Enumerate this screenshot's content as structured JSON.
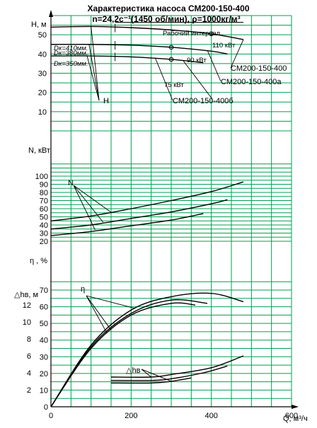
{
  "chart_data": {
    "type": "line",
    "title": "Характеристика насоса СМ200-150-400",
    "subtitle": "n=24,2с⁻¹(1450 об/мин), ρ=1000кг/м³",
    "colors": {
      "grid": "#00a050",
      "curve": "#000000",
      "axis": "#000000"
    },
    "x_axis": {
      "label": "Q, м³/ч",
      "ticks": [
        "0",
        "200",
        "400",
        "600"
      ],
      "lim": [
        0,
        600
      ]
    },
    "panels": {
      "head": {
        "ylabel": "H, м",
        "ylim": [
          0,
          60
        ],
        "ticks": [
          "10",
          "20",
          "30",
          "40",
          "50"
        ],
        "series": [
          {
            "name": "Dк=410мм.",
            "x": [
              0,
              100,
              200,
              300,
              400,
              480
            ],
            "y": [
              54,
              54.3,
              53.7,
              52.5,
              50.5,
              47.5
            ]
          },
          {
            "name": "Dк=380мм.",
            "x": [
              0,
              100,
              200,
              300,
              400,
              440
            ],
            "y": [
              45,
              45,
              44.6,
              43.5,
              41.5,
              40
            ]
          },
          {
            "name": "Dк=350мм.",
            "x": [
              0,
              100,
              200,
              300,
              380
            ],
            "y": [
              39,
              39,
              38.5,
              37.2,
              35.5
            ]
          }
        ],
        "annotations": {
          "interval": "Рабочий интервал",
          "power_110": "110 кВт",
          "power_90": "90 кВт",
          "power_75": "75 кВт",
          "model_a": "СМ200-150-400",
          "model_b": "СМ200-150-400а",
          "model_c": "СМ200-150-400б",
          "h_marker": "H"
        }
      },
      "power": {
        "ylabel": "N, кВт",
        "ylim": [
          20,
          100
        ],
        "ticks": [
          "20",
          "30",
          "40",
          "50",
          "60",
          "70",
          "80",
          "90",
          "100"
        ],
        "series": [
          {
            "x": [
              0,
              100,
              200,
              300,
              400,
              480
            ],
            "y": [
              45,
              51,
              60,
              70,
              81,
              93
            ]
          },
          {
            "x": [
              0,
              100,
              200,
              300,
              400,
              440
            ],
            "y": [
              35,
              40,
              48,
              56,
              66,
              71
            ]
          },
          {
            "x": [
              0,
              100,
              200,
              300,
              380
            ],
            "y": [
              27,
              32,
              39,
              46,
              54
            ]
          }
        ],
        "annotations": {
          "label": "N"
        }
      },
      "efficiency": {
        "ylabel": "η , %",
        "ylim": [
          0,
          75
        ],
        "ticks": [
          "0",
          "10",
          "20",
          "30",
          "40",
          "50",
          "60",
          "70"
        ],
        "series": [
          {
            "x": [
              0,
              100,
              200,
              300,
              400,
              480
            ],
            "y": [
              0,
              37,
              58,
              66,
              68,
              63
            ]
          },
          {
            "x": [
              0,
              100,
              200,
              300,
              390
            ],
            "y": [
              0,
              36,
              56,
              64,
              62
            ]
          },
          {
            "x": [
              0,
              100,
              200,
              300,
              360
            ],
            "y": [
              0,
              35,
              55,
              62,
              61
            ]
          }
        ],
        "annotations": {
          "label": "η"
        }
      },
      "npsh": {
        "ylabel": "△hв, м",
        "ylim": [
          0,
          13
        ],
        "ticks": [
          "2",
          "4",
          "6",
          "8",
          "10",
          "12"
        ],
        "series": [
          {
            "x": [
              150,
              250,
              300,
              400,
              480
            ],
            "y": [
              3.5,
              3.5,
              3.8,
              4.6,
              6.0
            ]
          },
          {
            "x": [
              150,
              250,
              300,
              380,
              440
            ],
            "y": [
              3.1,
              3.1,
              3.3,
              4.0,
              4.8
            ]
          },
          {
            "x": [
              150,
              250,
              300,
              350
            ],
            "y": [
              2.8,
              2.8,
              3.0,
              3.4
            ]
          }
        ],
        "annotations": {
          "label": "△hв"
        }
      }
    }
  }
}
